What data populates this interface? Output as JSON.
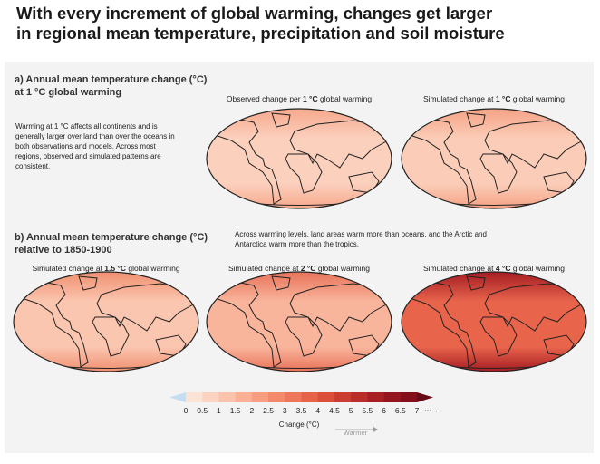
{
  "header": {
    "title_lines": [
      "With every increment of global warming, changes get larger",
      "in regional mean temperature, precipitation and soil moisture"
    ]
  },
  "panel_a": {
    "title_lines": [
      "a) Annual mean temperature change (°C)",
      "at 1 °C global warming"
    ],
    "note": "Warming at 1 °C affects all continents and is generally larger over land than over the oceans in both observations and models. Across most regions, observed and simulated patterns are consistent.",
    "maps": [
      {
        "caption": [
          "Observed change per ",
          "1 °C",
          " global warming"
        ]
      },
      {
        "caption": [
          "Simulated change at ",
          "1 °C",
          " global warming"
        ]
      }
    ]
  },
  "panel_b": {
    "title_lines": [
      "b) Annual mean temperature change (°C)",
      "relative to 1850-1900"
    ],
    "note": "Across warming levels, land areas warm more than oceans, and the Arctic and Antarctica warm more than the tropics.",
    "maps": [
      {
        "caption": [
          "Simulated change at ",
          "1.5 °C",
          " global warming"
        ]
      },
      {
        "caption": [
          "Simulated change at ",
          "2 °C",
          " global warming"
        ]
      },
      {
        "caption": [
          "Simulated change at ",
          "4 °C",
          " global warming"
        ]
      }
    ]
  },
  "colorbar": {
    "ticks": [
      0,
      0.5,
      1,
      1.5,
      2,
      2.5,
      3,
      3.5,
      4,
      4.5,
      5,
      5.5,
      6,
      6.5,
      7
    ],
    "label": "Change (°C)",
    "arrow_label": "Warmer"
  }
}
